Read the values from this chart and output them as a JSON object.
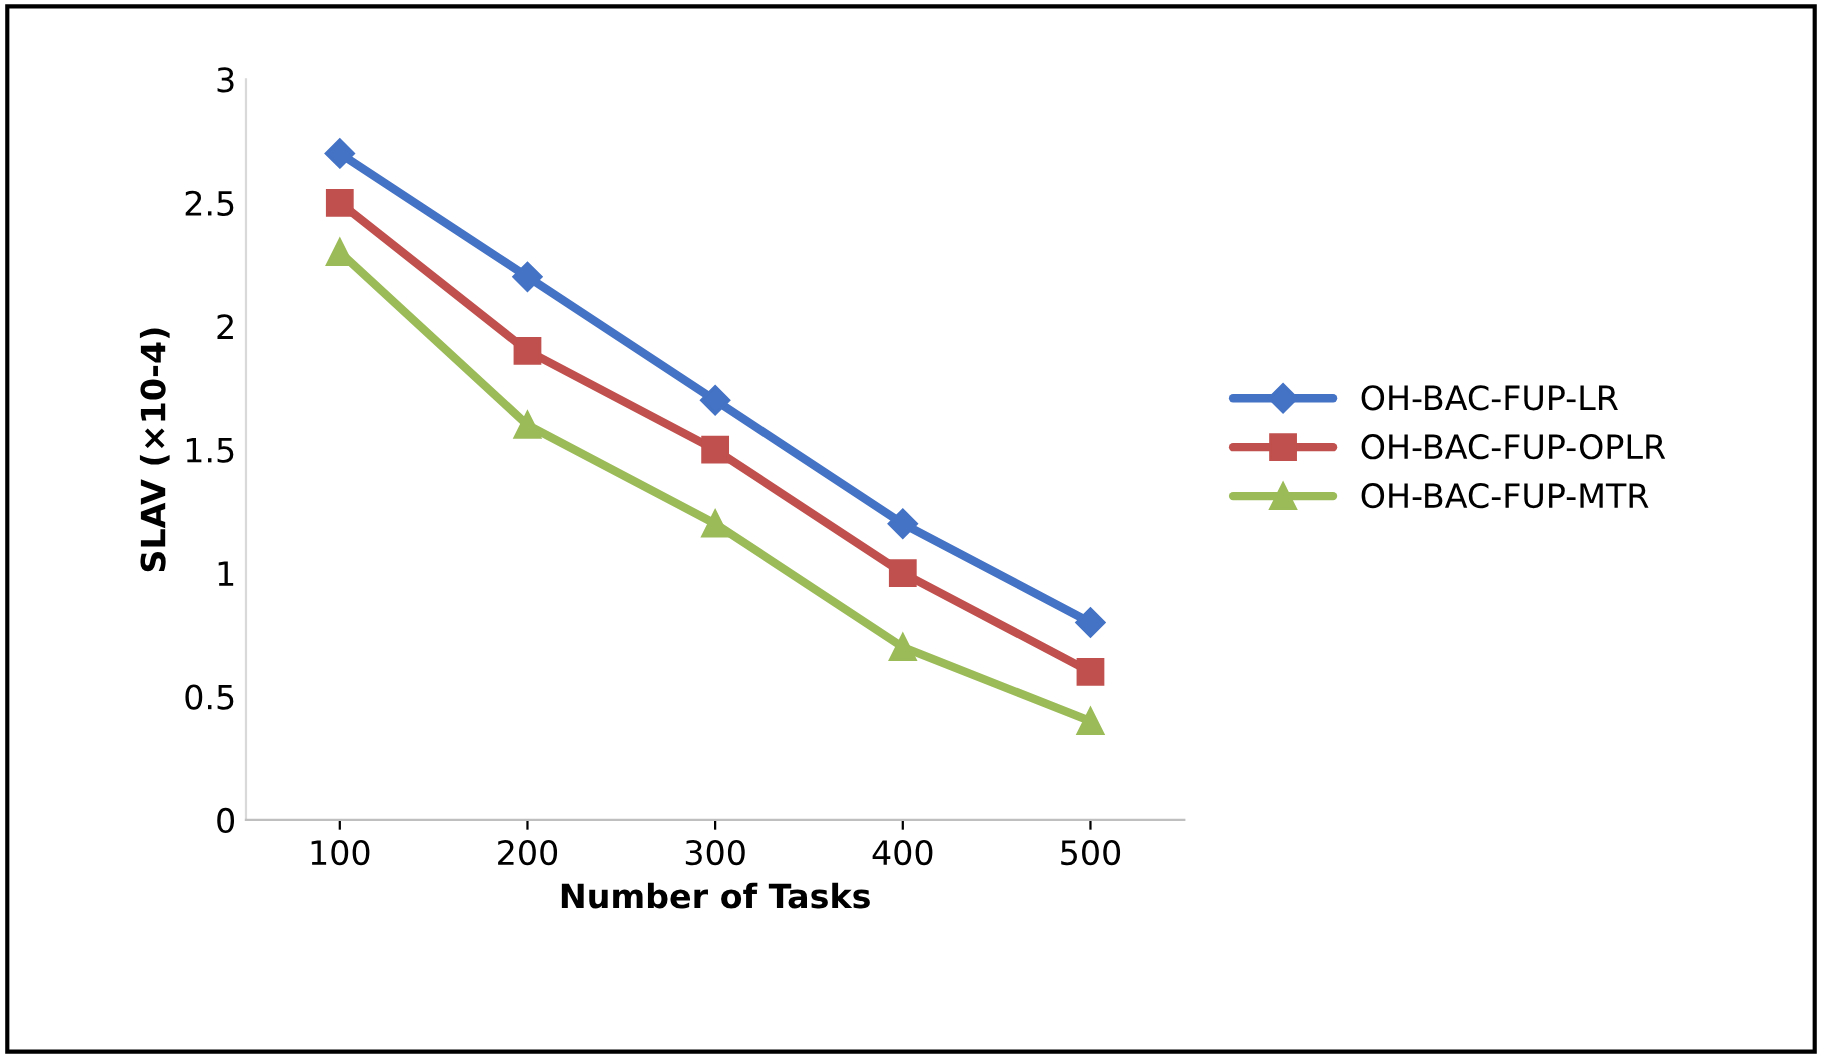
{
  "chart_data": {
    "type": "line",
    "xlabel": "Number of Tasks",
    "ylabel": "SLAV (×10-4)",
    "categories": [
      "100",
      "200",
      "300",
      "400",
      "500"
    ],
    "series": [
      {
        "name": "OH-BAC-FUP-LR",
        "color": "#4472c4",
        "marker": "diamond",
        "values": [
          2.7,
          2.2,
          1.7,
          1.2,
          0.8
        ]
      },
      {
        "name": "OH-BAC-FUP-OPLR",
        "color": "#c0504d",
        "marker": "square",
        "values": [
          2.5,
          1.9,
          1.5,
          1.0,
          0.6
        ]
      },
      {
        "name": "OH-BAC-FUP-MTR",
        "color": "#9bbb59",
        "marker": "triangle",
        "values": [
          2.3,
          1.6,
          1.2,
          0.7,
          0.4
        ]
      }
    ],
    "ylim": [
      0,
      3
    ],
    "yticks": [
      0,
      0.5,
      1,
      1.5,
      2,
      2.5,
      3
    ],
    "grid": false,
    "legend": "right"
  }
}
